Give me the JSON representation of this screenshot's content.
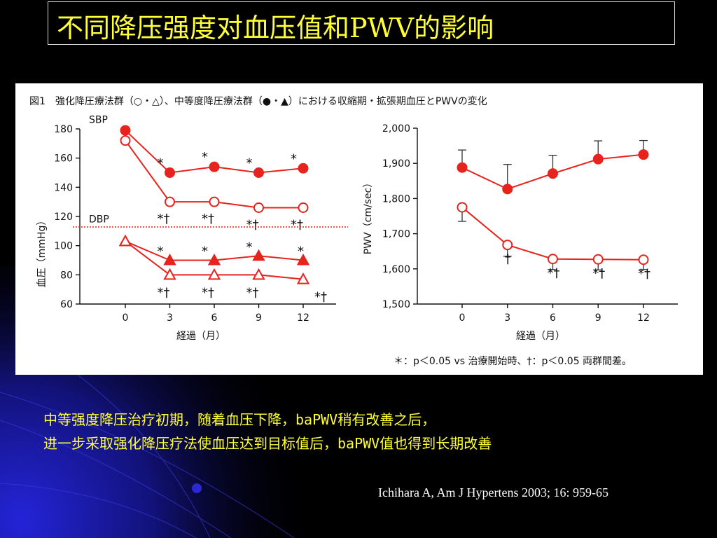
{
  "slide": {
    "title": "不同降压强度对血压值和PWV的影响",
    "body_line1": "中等强度降压治疗初期，随着血压下降，baPWV稍有改善之后，",
    "body_line2": "进一步采取强化降压疗法使血压达到目标值后，baPWV值也得到长期改善",
    "citation": "Ichihara A, Am J Hypertens 2003; 16: 959-65"
  },
  "colors": {
    "title_text": "#ffff33",
    "series": "#e8221c",
    "figure_bg": "#ffffff"
  },
  "figure": {
    "caption": "図1　強化降圧療法群（○・△）、中等度降圧療法群（●・▲）における収縮期・拡張期血圧とPWVの変化",
    "footnote": "＊：p＜0.05 vs 治療開始時、†：p＜0.05 両群間差。"
  },
  "chart_data": [
    {
      "type": "line",
      "ylabel": "血圧（mmHg）",
      "xlabel": "経過（月）",
      "x": [
        0,
        3,
        6,
        9,
        12
      ],
      "xticks": [
        "0",
        "3",
        "6",
        "9",
        "12"
      ],
      "ylim": [
        60,
        180
      ],
      "yticks": [
        60,
        80,
        100,
        120,
        140,
        160,
        180
      ],
      "annotations": [
        "SBP",
        "DBP"
      ],
      "series": [
        {
          "marker": "filled-circle",
          "values": [
            179,
            150,
            154,
            150,
            153
          ],
          "labels": [
            "",
            "*",
            "*",
            "*",
            "*"
          ]
        },
        {
          "marker": "open-circle",
          "values": [
            172,
            130,
            130,
            126,
            126
          ],
          "labels": [
            "",
            "*†",
            "*†",
            "*†",
            "*†"
          ]
        },
        {
          "marker": "filled-triangle",
          "values": [
            103,
            90,
            90,
            93,
            90
          ],
          "labels": [
            "",
            "*",
            "*",
            "*",
            "*"
          ]
        },
        {
          "marker": "open-triangle",
          "values": [
            103,
            80,
            80,
            80,
            77
          ],
          "labels": [
            "",
            "*†",
            "*†",
            "*†",
            "*†"
          ]
        }
      ]
    },
    {
      "type": "line",
      "ylabel": "PWV（cm/sec）",
      "xlabel": "経過（月）",
      "x": [
        0,
        3,
        6,
        9,
        12
      ],
      "xticks": [
        "0",
        "3",
        "6",
        "9",
        "12"
      ],
      "ylim": [
        1500,
        2000
      ],
      "yticks": [
        "1,500",
        "1,600",
        "1,700",
        "1,800",
        "1,900",
        "2,000"
      ],
      "series": [
        {
          "marker": "filled-circle",
          "values": [
            1888,
            1827,
            1871,
            1912,
            1925
          ],
          "error": [
            50,
            70,
            52,
            52,
            40
          ],
          "labels": [
            "",
            "",
            "",
            "",
            ""
          ]
        },
        {
          "marker": "open-circle",
          "values": [
            1775,
            1668,
            1628,
            1627,
            1626
          ],
          "error": [
            40,
            32,
            30,
            30,
            28
          ],
          "labels": [
            "",
            "†",
            "*†",
            "*†",
            "*†"
          ]
        }
      ]
    }
  ]
}
